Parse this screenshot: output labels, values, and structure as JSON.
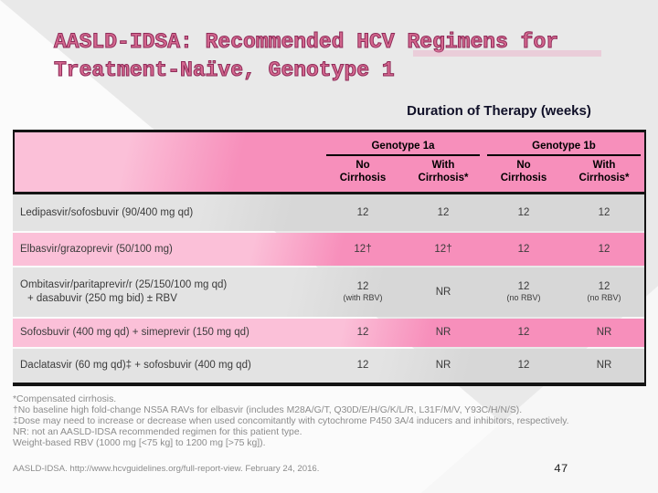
{
  "slide": {
    "title_line1": "AASLD-IDSA: Recommended HCV Regimens for",
    "title_line2": "Treatment-Naïve, Genotype 1",
    "table_caption": "Duration of Therapy (weeks)",
    "page_number": "47"
  },
  "table": {
    "group_headers": [
      "Genotype 1a",
      "Genotype 1b"
    ],
    "sub_headers": [
      "No\nCirrhosis",
      "With\nCirrhosis*",
      "No\nCirrhosis",
      "With\nCirrhosis*"
    ],
    "rows": [
      {
        "label_line1": "Ledipasvir/sofosbuvir (90/400 mg qd)",
        "cells": [
          {
            "v": "12"
          },
          {
            "v": "12"
          },
          {
            "v": "12"
          },
          {
            "v": "12"
          }
        ]
      },
      {
        "label_line1": "Elbasvir/grazoprevir (50/100 mg)",
        "cells": [
          {
            "v": "12†"
          },
          {
            "v": "12†"
          },
          {
            "v": "12"
          },
          {
            "v": "12"
          }
        ]
      },
      {
        "label_line1": "Ombitasvir/paritaprevir/r (25/150/100 mg qd)",
        "label_line2": "+ dasabuvir (250 mg bid) ± RBV",
        "cells": [
          {
            "v": "12",
            "note": "(with RBV)"
          },
          {
            "v": "NR"
          },
          {
            "v": "12",
            "note": "(no RBV)"
          },
          {
            "v": "12",
            "note": "(no RBV)"
          }
        ]
      },
      {
        "label_line1": "Sofosbuvir (400 mg qd) + simeprevir (150 mg qd)",
        "cells": [
          {
            "v": "12"
          },
          {
            "v": "NR"
          },
          {
            "v": "12"
          },
          {
            "v": "NR"
          }
        ]
      },
      {
        "label_line1": "Daclatasvir (60 mg qd)‡ + sofosbuvir (400 mg qd)",
        "cells": [
          {
            "v": "12"
          },
          {
            "v": "NR"
          },
          {
            "v": "12"
          },
          {
            "v": "NR"
          }
        ]
      }
    ]
  },
  "footnotes": [
    "*Compensated cirrhosis.",
    "†No baseline high fold-change NS5A RAVs for elbasvir (includes M28A/G/T, Q30D/E/H/G/K/L/R, L31F/M/V, Y93C/H/N/S).",
    "‡Dose may need to increase or decrease when used concomitantly with cytochrome P450 3A/4 inducers and inhibitors, respectively.",
    "NR: not an AASLD-IDSA recommended regimen for this patient type.",
    "Weight-based RBV (1000 mg [<75 kg] to 1200 mg [>75 kg])."
  ],
  "source": "AASLD-IDSA. http://www.hcvguidelines.org/full-report-view. February 24, 2016.",
  "colors": {
    "pink": "#F78FBB",
    "pink_light": "#FBC0D8",
    "gray_row": "#D7D7D7",
    "title": "#C23A6E",
    "caption": "#101028",
    "footnote": "#8C8C8C"
  }
}
